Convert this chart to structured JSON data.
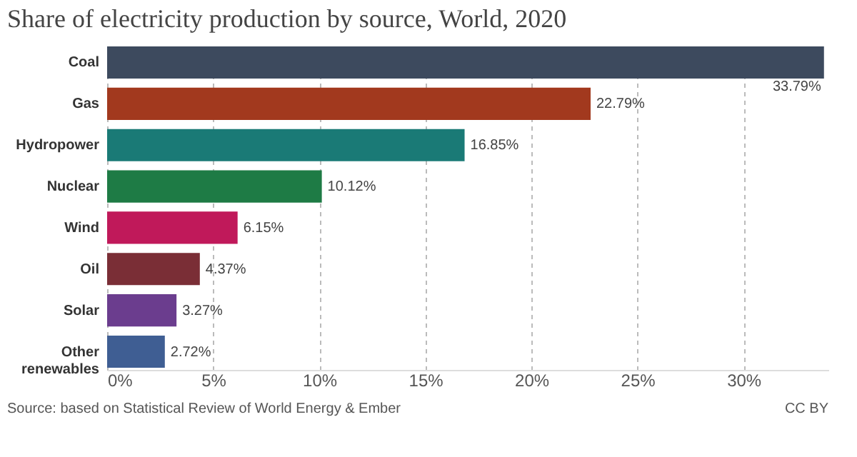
{
  "chart_data": {
    "type": "bar",
    "orientation": "horizontal",
    "title": "Share of electricity production by source, World, 2020",
    "categories": [
      "Coal",
      "Gas",
      "Hydropower",
      "Nuclear",
      "Wind",
      "Oil",
      "Solar",
      "Other renewables"
    ],
    "values": [
      33.79,
      22.79,
      16.85,
      10.12,
      6.15,
      4.37,
      3.27,
      2.72
    ],
    "colors": [
      "#3d4a5e",
      "#a2391e",
      "#1a7a76",
      "#1e7b45",
      "#c0195a",
      "#7a2e36",
      "#6b3d8e",
      "#3f5e93"
    ],
    "value_labels": [
      "33.79%",
      "22.79%",
      "16.85%",
      "10.12%",
      "6.15%",
      "4.37%",
      "3.27%",
      "2.72%"
    ],
    "xlim": [
      0,
      34
    ],
    "xticks": [
      {
        "value": 0,
        "label": "0%"
      },
      {
        "value": 5,
        "label": "5%"
      },
      {
        "value": 10,
        "label": "10%"
      },
      {
        "value": 15,
        "label": "15%"
      },
      {
        "value": 20,
        "label": "20%"
      },
      {
        "value": 25,
        "label": "25%"
      },
      {
        "value": 30,
        "label": "30%"
      }
    ],
    "grid": "x",
    "annotations": [
      "Source: based on Statistical Review of World Energy & Ember",
      "CC BY"
    ]
  }
}
